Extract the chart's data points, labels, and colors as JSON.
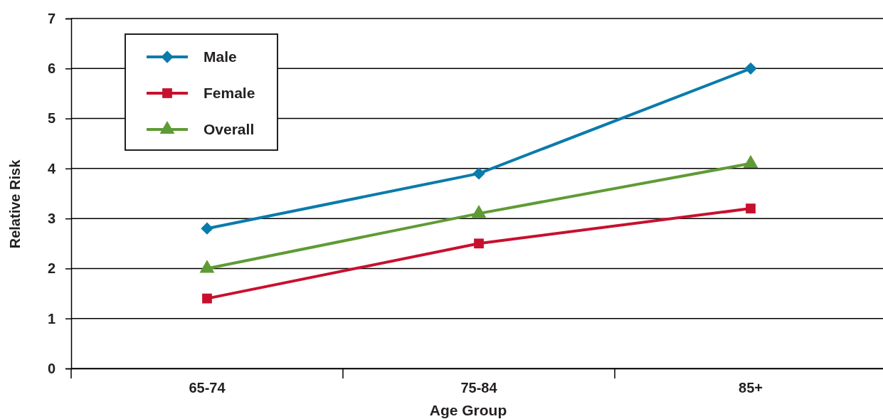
{
  "chart_data": {
    "type": "line",
    "xlabel": "Age Group",
    "ylabel": "Relative Risk",
    "categories": [
      "65-74",
      "75-84",
      "85+"
    ],
    "series": [
      {
        "name": "Male",
        "color": "#0a7bab",
        "values": [
          2.8,
          3.9,
          6.0
        ],
        "marker": "diamond"
      },
      {
        "name": "Female",
        "color": "#c8102e",
        "values": [
          1.4,
          2.5,
          3.2
        ],
        "marker": "square"
      },
      {
        "name": "Overall",
        "color": "#5f9b35",
        "values": [
          2.0,
          3.1,
          4.1
        ],
        "marker": "triangle"
      }
    ],
    "ylim": [
      0,
      7
    ],
    "yticks": [
      0,
      1,
      2,
      3,
      4,
      5,
      6,
      7
    ],
    "grid": "y",
    "legend": "top left"
  }
}
